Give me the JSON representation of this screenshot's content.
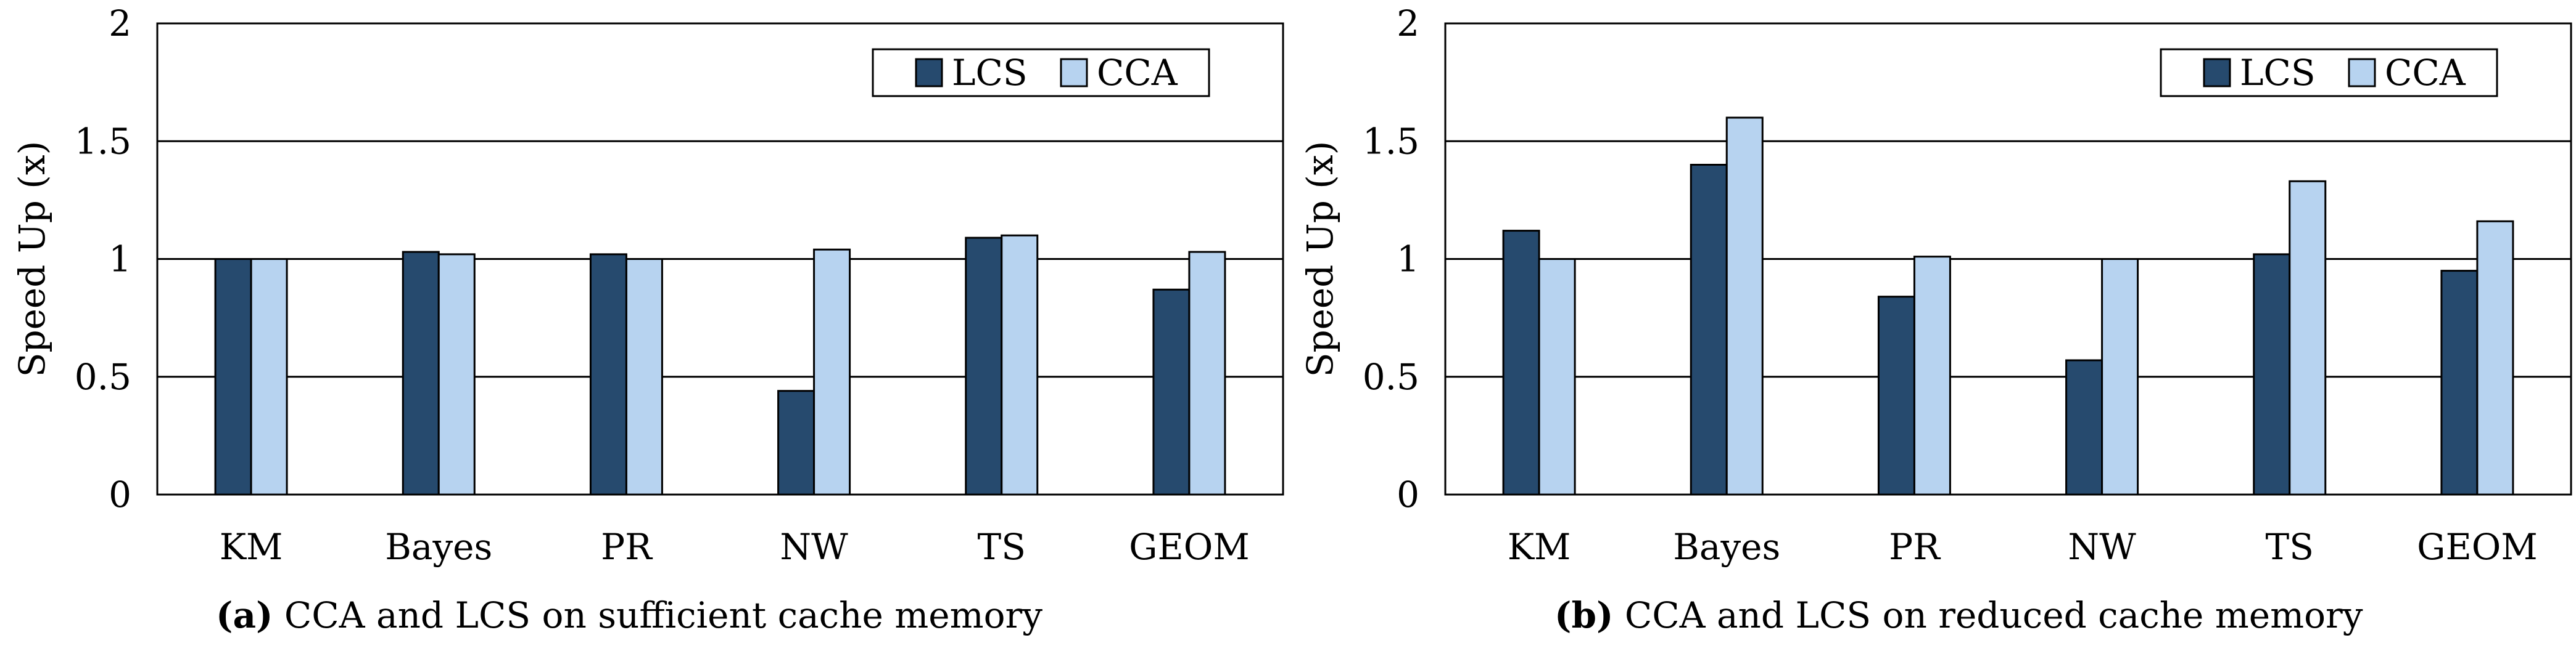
{
  "colors": {
    "lcs": "#264a6e",
    "cca": "#b7d3f0",
    "axis": "#000000",
    "grid": "#000000"
  },
  "chart_data": [
    {
      "id": "a",
      "type": "bar",
      "panel_label": "(a)",
      "caption": "CCA and LCS on sufficient cache memory",
      "ylabel": "Speed Up (x)",
      "xlabel": "",
      "ylim": [
        0,
        2
      ],
      "yticks": [
        "0",
        "0.5",
        "1",
        "1.5",
        "2"
      ],
      "grid": true,
      "legend_position": "top-right",
      "categories": [
        "KM",
        "Bayes",
        "PR",
        "NW",
        "TS",
        "GEOM"
      ],
      "series": [
        {
          "name": "LCS",
          "values": [
            1.0,
            1.03,
            1.02,
            0.44,
            1.09,
            0.87
          ]
        },
        {
          "name": "CCA",
          "values": [
            1.0,
            1.02,
            1.0,
            1.04,
            1.1,
            1.03
          ]
        }
      ]
    },
    {
      "id": "b",
      "type": "bar",
      "panel_label": "(b)",
      "caption": "CCA and LCS on reduced cache memory",
      "ylabel": "Speed Up (x)",
      "xlabel": "",
      "ylim": [
        0,
        2
      ],
      "yticks": [
        "0",
        "0.5",
        "1",
        "1.5",
        "2"
      ],
      "grid": true,
      "legend_position": "top-right",
      "categories": [
        "KM",
        "Bayes",
        "PR",
        "NW",
        "TS",
        "GEOM"
      ],
      "series": [
        {
          "name": "LCS",
          "values": [
            1.12,
            1.4,
            0.84,
            0.57,
            1.02,
            0.95
          ]
        },
        {
          "name": "CCA",
          "values": [
            1.0,
            1.6,
            1.01,
            1.0,
            1.33,
            1.16
          ]
        }
      ]
    }
  ]
}
